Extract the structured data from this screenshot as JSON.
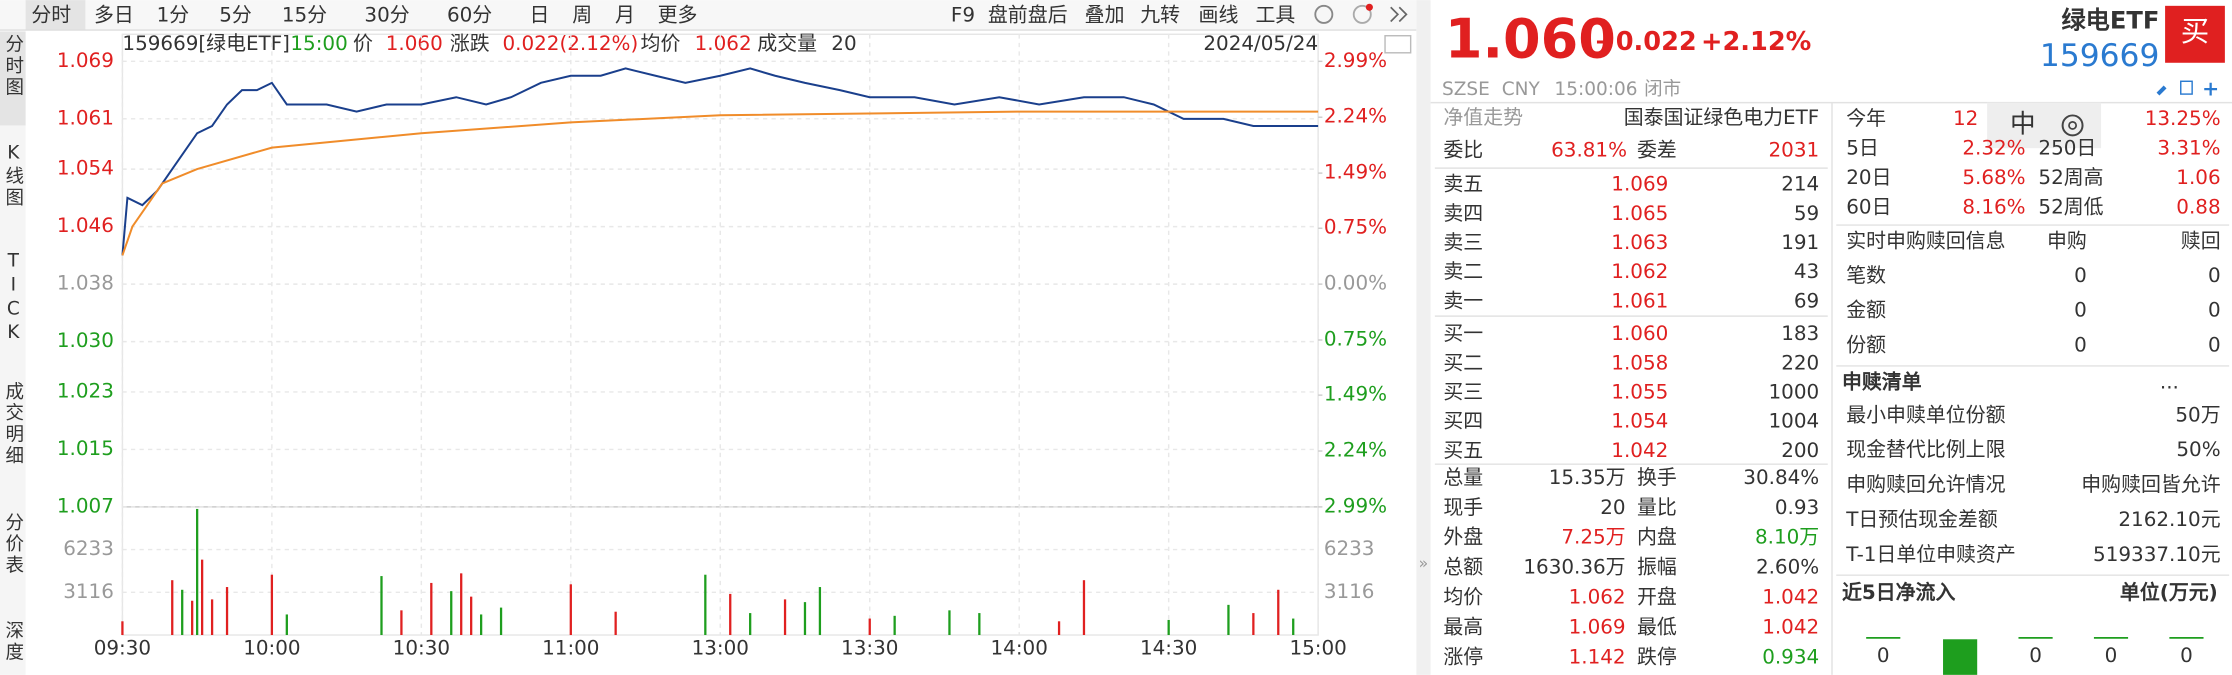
{
  "toolbar": {
    "periods": [
      "分时",
      "多日",
      "1分",
      "5分",
      "15分",
      "30分",
      "60分",
      "日",
      "周",
      "月",
      "更多"
    ],
    "tools": [
      "F9",
      "盘前盘后",
      "叠加",
      "九转",
      "画线",
      "工具"
    ]
  },
  "side_tabs": [
    "分时图",
    "K线图",
    "TICK",
    "成交明细",
    "分价表",
    "深度"
  ],
  "chart_header": {
    "code": "159669[绿电ETF]",
    "time": "15:00",
    "price_label": "价",
    "price": "1.060",
    "change_label": "涨跌",
    "change": "0.022(2.12%)",
    "avg_label": "均价",
    "avg": "1.062",
    "vol_label": "成交量",
    "vol": "20",
    "date": "2024/05/24"
  },
  "chart_data": {
    "type": "line",
    "xlim": [
      0,
      240
    ],
    "xticks": [
      {
        "value": 0,
        "label": "09:30"
      },
      {
        "value": 30,
        "label": "10:00"
      },
      {
        "value": 60,
        "label": "10:30"
      },
      {
        "value": 90,
        "label": "11:00"
      },
      {
        "value": 120,
        "label": "13:00"
      },
      {
        "value": 150,
        "label": "13:30"
      },
      {
        "value": 180,
        "label": "14:00"
      },
      {
        "value": 210,
        "label": "14:30"
      },
      {
        "value": 240,
        "label": "15:00"
      }
    ],
    "ylim": [
      1.007,
      1.069
    ],
    "yticks": [
      1.069,
      1.061,
      1.054,
      1.046,
      1.038,
      {
        "value": 1.03,
        "label": "1.030"
      },
      1.023,
      1.015,
      1.007
    ],
    "y2lim": [
      -2.99,
      2.99
    ],
    "y2ticks": [
      {
        "value": 2.99,
        "label": "2.99%"
      },
      {
        "value": 2.24,
        "label": "2.24%"
      },
      {
        "value": 1.49,
        "label": "1.49%"
      },
      {
        "value": 0.75,
        "label": "0.75%"
      },
      {
        "value": 0,
        "label": "0.00%"
      },
      {
        "value": -0.75,
        "label": "0.75%"
      },
      {
        "value": -1.49,
        "label": "1.49%"
      },
      {
        "value": -2.24,
        "label": "2.24%"
      },
      {
        "value": -2.99,
        "label": "2.99%"
      }
    ],
    "grid": true,
    "series": [
      {
        "color": "#1a3f8c",
        "x": [
          0,
          1,
          4,
          7,
          10,
          13,
          15,
          18,
          21,
          24,
          27,
          30,
          33,
          35,
          41,
          47,
          53,
          60,
          67,
          73,
          78,
          84,
          90,
          96,
          101,
          107,
          113,
          120,
          126,
          131,
          137,
          144,
          150,
          159,
          167,
          176,
          184,
          193,
          201,
          207,
          213,
          221,
          227,
          233,
          240
        ],
        "values": [
          1.042,
          1.05,
          1.049,
          1.051,
          1.054,
          1.057,
          1.059,
          1.06,
          1.063,
          1.065,
          1.065,
          1.066,
          1.063,
          1.063,
          1.063,
          1.062,
          1.063,
          1.063,
          1.064,
          1.063,
          1.064,
          1.066,
          1.067,
          1.067,
          1.068,
          1.067,
          1.066,
          1.067,
          1.068,
          1.067,
          1.066,
          1.065,
          1.064,
          1.064,
          1.063,
          1.064,
          1.063,
          1.064,
          1.064,
          1.063,
          1.061,
          1.061,
          1.06,
          1.06,
          1.06
        ]
      },
      {
        "color": "#f08c2a",
        "x": [
          0,
          2,
          5,
          8,
          15,
          30,
          60,
          90,
          120,
          180,
          240
        ],
        "values": [
          1.042,
          1.046,
          1.049,
          1.052,
          1.054,
          1.057,
          1.059,
          1.0605,
          1.0615,
          1.062,
          1.062
        ]
      }
    ],
    "volume": {
      "ylim": [
        0,
        9349
      ],
      "yticks": [
        3116,
        6233
      ],
      "x": [
        0,
        10,
        12,
        14,
        15,
        16,
        18,
        21,
        30,
        33,
        52,
        56,
        62,
        66,
        68,
        70,
        72,
        76,
        90,
        99,
        117,
        122,
        126,
        133,
        137,
        140,
        150,
        155,
        166,
        172,
        188,
        193,
        210,
        222,
        227,
        232,
        235
      ],
      "values": [
        1000,
        4000,
        3300,
        2500,
        9200,
        5500,
        2600,
        3500,
        4400,
        1500,
        4300,
        1800,
        3800,
        3200,
        4500,
        2800,
        1500,
        2000,
        3700,
        1700,
        4400,
        3000,
        1600,
        2600,
        2400,
        3500,
        1200,
        1400,
        1800,
        1600,
        1000,
        4000,
        1100,
        2200,
        1600,
        3300,
        1200
      ],
      "colors": [
        "#e02020",
        "#e02020",
        "#1e9e1e",
        "#e02020",
        "#1e9e1e",
        "#e02020",
        "#e02020",
        "#e02020",
        "#e02020",
        "#1e9e1e",
        "#1e9e1e",
        "#e02020",
        "#e02020",
        "#1e9e1e",
        "#e02020",
        "#e02020",
        "#1e9e1e",
        "#1e9e1e",
        "#e02020",
        "#e02020",
        "#1e9e1e",
        "#e02020",
        "#1e9e1e",
        "#e02020",
        "#1e9e1e",
        "#1e9e1e",
        "#e02020",
        "#1e9e1e",
        "#1e9e1e",
        "#1e9e1e",
        "#e02020",
        "#e02020",
        "#1e9e1e",
        "#1e9e1e",
        "#e02020",
        "#e02020",
        "#1e9e1e"
      ]
    }
  },
  "quote": {
    "price": "1.060",
    "change": "+0.022",
    "change_pct": "+2.12%",
    "name": "绿电ETF",
    "code": "159669",
    "buy_button": "买",
    "exchange": "SZSE",
    "currency": "CNY",
    "time": "15:00:06",
    "status": "闭市"
  },
  "nav": [
    "净值走势",
    "国泰国证绿色电力ETF"
  ],
  "bid_ratio": [
    "委比",
    "63.81%",
    "委差",
    "2031"
  ],
  "sell": [
    [
      "卖五",
      "1.069",
      "214"
    ],
    [
      "卖四",
      "1.065",
      "59"
    ],
    [
      "卖三",
      "1.063",
      "191"
    ],
    [
      "卖二",
      "1.062",
      "43"
    ],
    [
      "卖一",
      "1.061",
      "69"
    ]
  ],
  "buy": [
    [
      "买一",
      "1.060",
      "183"
    ],
    [
      "买二",
      "1.058",
      "220"
    ],
    [
      "买三",
      "1.055",
      "1000"
    ],
    [
      "买四",
      "1.054",
      "1004"
    ],
    [
      "买五",
      "1.042",
      "200"
    ]
  ],
  "stats": [
    [
      "总量",
      "15.35万",
      "换手",
      "30.84%"
    ],
    [
      "现手",
      "20",
      "量比",
      "0.93"
    ],
    [
      "外盘",
      "7.25万",
      "内盘",
      "8.10万"
    ],
    [
      "总额",
      "1630.36万",
      "振幅",
      "2.60%"
    ],
    [
      "均价",
      "1.062",
      "开盘",
      "1.042"
    ],
    [
      "最高",
      "1.069",
      "最低",
      "1.042"
    ],
    [
      "涨停",
      "1.142",
      "跌停",
      "0.934"
    ]
  ],
  "returns": [
    [
      "今年",
      "12",
      "13.25%"
    ],
    [
      "5日",
      "2.32%",
      "250日",
      "3.31%"
    ],
    [
      "20日",
      "5.68%",
      "52周高",
      "1.06"
    ],
    [
      "60日",
      "8.16%",
      "52周低",
      "0.88"
    ]
  ],
  "overlay": "中",
  "subscription": {
    "title": "实时申购赎回信息",
    "cols": [
      "申购",
      "赎回"
    ],
    "rows": [
      [
        "笔数",
        "0",
        "0"
      ],
      [
        "金额",
        "0",
        "0"
      ],
      [
        "份额",
        "0",
        "0"
      ]
    ]
  },
  "redemption_list": {
    "title": "申赎清单",
    "more": "...",
    "rows": [
      [
        "最小申赎单位份额",
        "50万"
      ],
      [
        "现金替代比例上限",
        "50%"
      ],
      [
        "申购赎回允许情况",
        "申购赎回皆允许"
      ],
      [
        "T日预估现金差额",
        "2162.10元"
      ],
      [
        "T-1日单位申赎资产",
        "519337.10元"
      ]
    ]
  },
  "inflow": {
    "title": "近5日净流入",
    "unit": "单位(万元)",
    "values": [
      0,
      null,
      0,
      0,
      0
    ]
  }
}
